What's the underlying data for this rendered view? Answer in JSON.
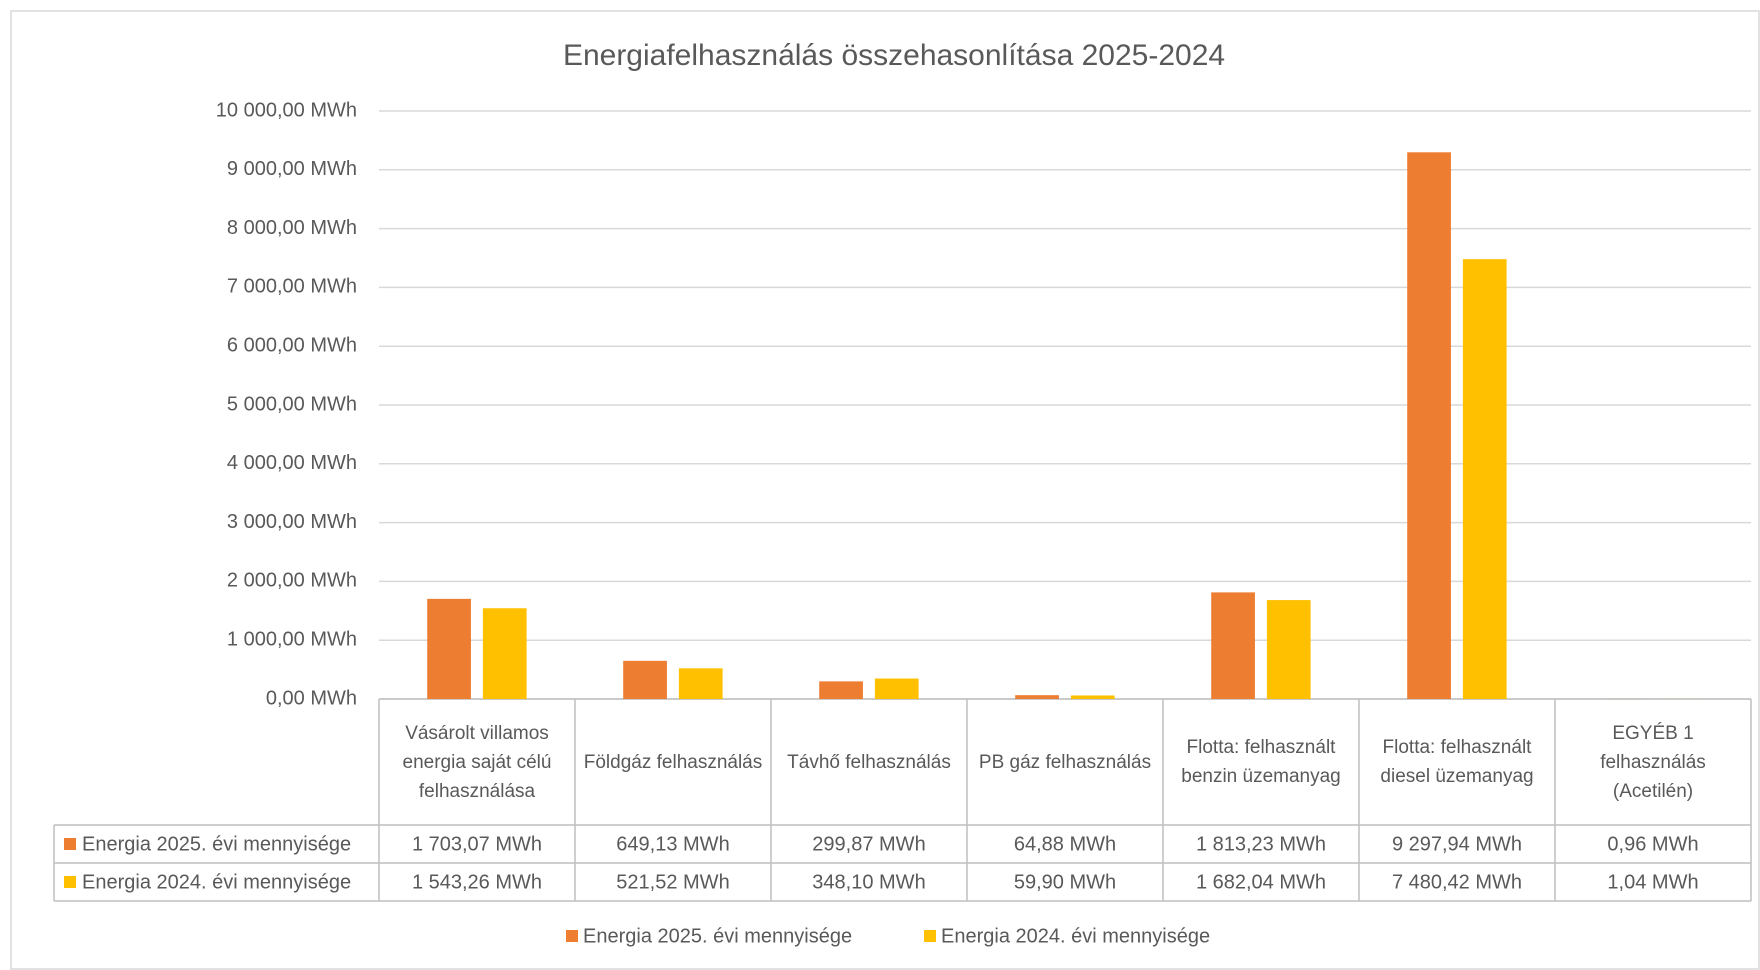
{
  "chart_data": {
    "type": "bar",
    "title": "Energiafelhasználás összehasonlítása  2025-2024",
    "categories": [
      "Vásárolt villamos energia saját célú felhasználása",
      "Földgáz felhasználás",
      "Távhő felhasználás",
      "PB gáz felhasználás",
      "Flotta: felhasznált benzin üzemanyag",
      "Flotta: felhasznált diesel üzemanyag",
      "EGYÉB 1 felhasználás (Acetilén)"
    ],
    "series": [
      {
        "name": "Energia 2025. évi mennyisége",
        "color": "#ED7D31",
        "values": [
          1703.07,
          649.13,
          299.87,
          64.88,
          1813.23,
          9297.94,
          0.96
        ],
        "value_labels": [
          "1 703,07 MWh",
          "649,13 MWh",
          "299,87 MWh",
          "64,88 MWh",
          "1 813,23 MWh",
          "9 297,94 MWh",
          "0,96 MWh"
        ]
      },
      {
        "name": "Energia 2024. évi mennyisége",
        "color": "#FFC000",
        "values": [
          1543.26,
          521.52,
          348.1,
          59.9,
          1682.04,
          7480.42,
          1.04
        ],
        "value_labels": [
          "1 543,26 MWh",
          "521,52 MWh",
          "348,10 MWh",
          "59,90 MWh",
          "1 682,04 MWh",
          "7 480,42 MWh",
          "1,04 MWh"
        ]
      }
    ],
    "ylim": [
      0,
      10000
    ],
    "yticks": [
      {
        "value": 0,
        "label": "0,00 MWh"
      },
      {
        "value": 1000,
        "label": "1 000,00 MWh"
      },
      {
        "value": 2000,
        "label": "2 000,00 MWh"
      },
      {
        "value": 3000,
        "label": "3 000,00 MWh"
      },
      {
        "value": 4000,
        "label": "4 000,00 MWh"
      },
      {
        "value": 5000,
        "label": "5 000,00 MWh"
      },
      {
        "value": 6000,
        "label": "6 000,00 MWh"
      },
      {
        "value": 7000,
        "label": "7 000,00 MWh"
      },
      {
        "value": 8000,
        "label": "8 000,00 MWh"
      },
      {
        "value": 9000,
        "label": "9 000,00 MWh"
      },
      {
        "value": 10000,
        "label": "10 000,00 MWh"
      }
    ],
    "grid": true,
    "legend": "bottom"
  }
}
